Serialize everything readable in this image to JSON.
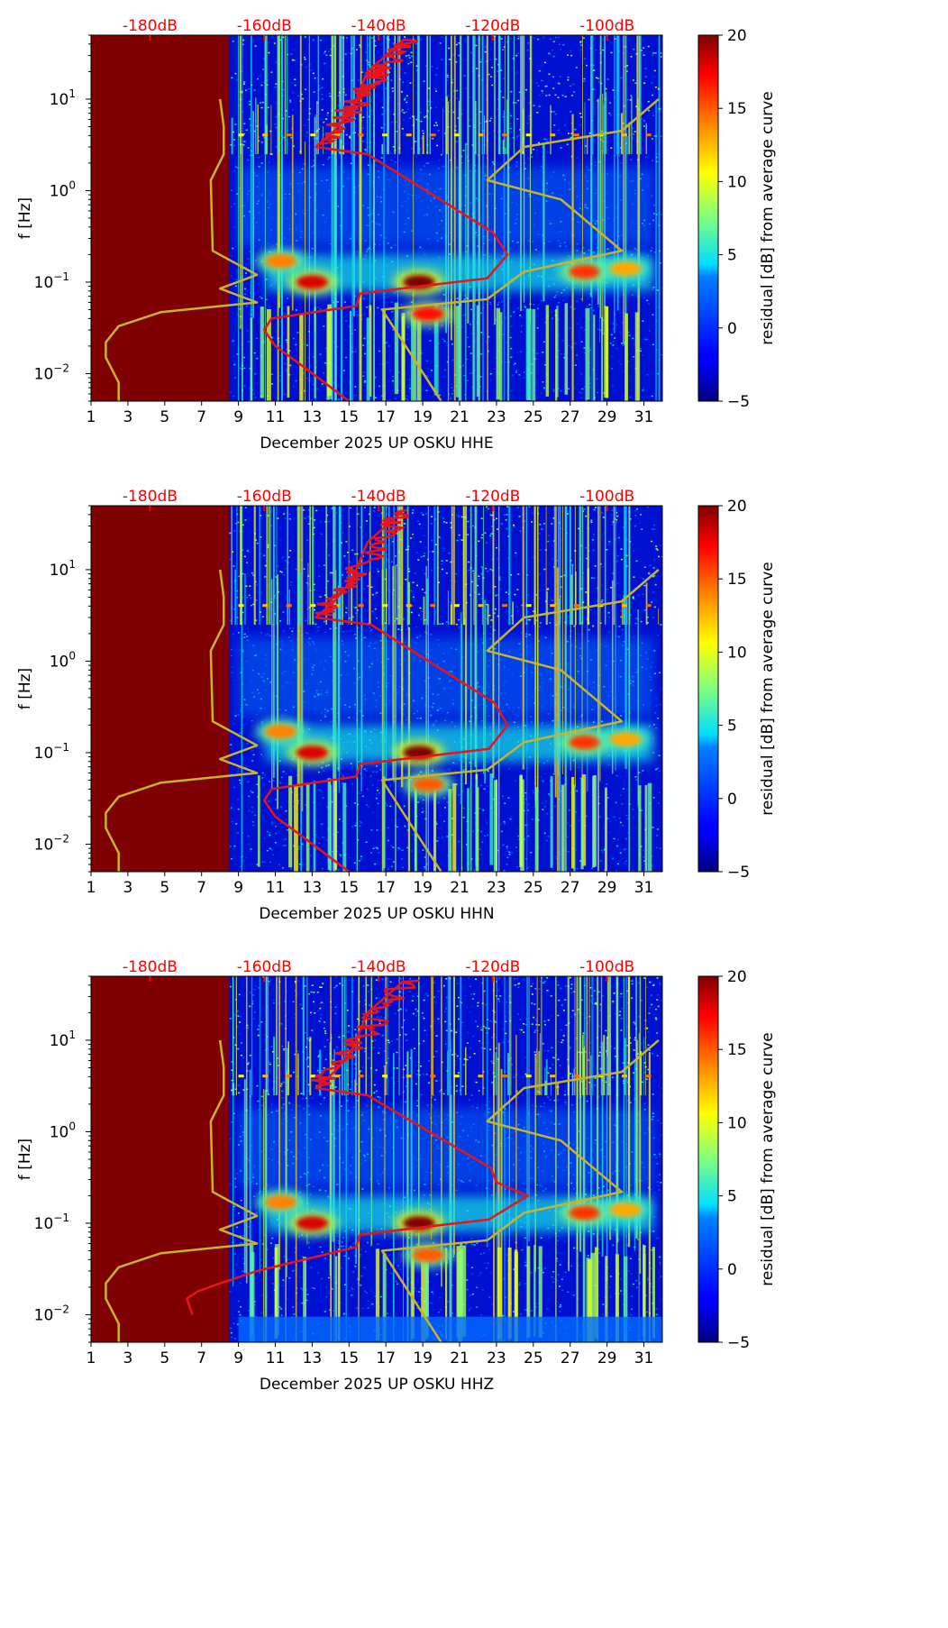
{
  "chart_data": [
    {
      "type": "heatmap",
      "xlabel": "December 2025 UP OSKU  HHE",
      "ylabel": "f [Hz]",
      "xlim": [
        1,
        32
      ],
      "ylim_hz": [
        0.005,
        50
      ],
      "x_ticks": [
        "1",
        "3",
        "5",
        "7",
        "9",
        "11",
        "13",
        "15",
        "17",
        "19",
        "21",
        "23",
        "25",
        "27",
        "29",
        "31"
      ],
      "y_ticks": [
        {
          "label": "10",
          "exp": "−2"
        },
        {
          "label": "10",
          "exp": "−1"
        },
        {
          "label": "10",
          "exp": "0"
        },
        {
          "label": "10",
          "exp": "1"
        }
      ],
      "top_ticks": [
        "-180dB",
        "-160dB",
        "-140dB",
        "-120dB",
        "-100dB"
      ],
      "colorbar": {
        "label": "residual [dB] from average curve",
        "range": [
          -5,
          20
        ],
        "ticks": [
          "−5",
          "0",
          "5",
          "10",
          "15",
          "20"
        ]
      },
      "no_data_until_day": 8.5,
      "red_curve": {
        "name": "average curve",
        "day": [
          15.0,
          12.5,
          11.0,
          10.4,
          10.8,
          15.4,
          15.6,
          22.5,
          23.6,
          22.8,
          16.0,
          13.2,
          14.2,
          15.2,
          16.0,
          18.0
        ],
        "hz": [
          0.005,
          0.012,
          0.02,
          0.03,
          0.04,
          0.055,
          0.075,
          0.11,
          0.2,
          0.35,
          2.5,
          3.0,
          4.5,
          8.0,
          20.0,
          45.0
        ]
      },
      "yellow_left": {
        "day": [
          2.5,
          2.5,
          1.8,
          1.8,
          2.5,
          4.8,
          10.0,
          8.0,
          10.0,
          7.6,
          7.5,
          8.2,
          8.2,
          8.0
        ],
        "hz": [
          0.005,
          0.008,
          0.015,
          0.022,
          0.033,
          0.047,
          0.06,
          0.085,
          0.12,
          0.22,
          1.3,
          2.5,
          5.0,
          10.0
        ]
      },
      "yellow_mid": {
        "day": [
          20.0,
          16.8,
          22.5,
          24.5,
          29.8,
          26.5,
          22.5,
          24.5,
          29.8,
          31.8
        ],
        "hz": [
          0.005,
          0.05,
          0.065,
          0.13,
          0.22,
          0.8,
          1.3,
          3.0,
          4.5,
          10.0
        ]
      },
      "blobs": [
        {
          "day": 13.0,
          "hz": 0.1,
          "level": 18
        },
        {
          "day": 18.8,
          "hz": 0.1,
          "level": 20
        },
        {
          "day": 19.3,
          "hz": 0.045,
          "level": 17
        },
        {
          "day": 11.3,
          "hz": 0.17,
          "level": 14
        },
        {
          "day": 27.8,
          "hz": 0.13,
          "level": 16
        },
        {
          "day": 30.0,
          "hz": 0.14,
          "level": 13
        }
      ]
    },
    {
      "type": "heatmap",
      "xlabel": "December 2025 UP OSKU  HHN",
      "ylabel": "f [Hz]",
      "xlim": [
        1,
        32
      ],
      "ylim_hz": [
        0.005,
        50
      ],
      "x_ticks": [
        "1",
        "3",
        "5",
        "7",
        "9",
        "11",
        "13",
        "15",
        "17",
        "19",
        "21",
        "23",
        "25",
        "27",
        "29",
        "31"
      ],
      "y_ticks": [
        {
          "label": "10",
          "exp": "−2"
        },
        {
          "label": "10",
          "exp": "−1"
        },
        {
          "label": "10",
          "exp": "0"
        },
        {
          "label": "10",
          "exp": "1"
        }
      ],
      "top_ticks": [
        "-180dB",
        "-160dB",
        "-140dB",
        "-120dB",
        "-100dB"
      ],
      "colorbar": {
        "label": "residual [dB] from average curve",
        "range": [
          -5,
          20
        ],
        "ticks": [
          "−5",
          "0",
          "5",
          "10",
          "15",
          "20"
        ]
      },
      "no_data_until_day": 8.5,
      "red_curve": {
        "name": "average curve",
        "day": [
          15.0,
          12.5,
          11.0,
          10.4,
          10.8,
          15.4,
          15.6,
          22.6,
          23.6,
          22.9,
          16.2,
          13.2,
          14.2,
          15.2,
          16.0,
          18.0
        ],
        "hz": [
          0.005,
          0.012,
          0.02,
          0.03,
          0.04,
          0.055,
          0.075,
          0.11,
          0.2,
          0.35,
          2.5,
          3.0,
          4.5,
          8.0,
          20.0,
          45.0
        ]
      },
      "yellow_left": {
        "day": [
          2.5,
          2.5,
          1.8,
          1.8,
          2.5,
          4.8,
          10.0,
          8.0,
          10.0,
          7.6,
          7.5,
          8.2,
          8.2,
          8.0
        ],
        "hz": [
          0.005,
          0.008,
          0.015,
          0.022,
          0.033,
          0.047,
          0.06,
          0.085,
          0.12,
          0.22,
          1.3,
          2.5,
          5.0,
          10.0
        ]
      },
      "yellow_mid": {
        "day": [
          20.0,
          16.8,
          22.5,
          24.5,
          29.8,
          26.5,
          22.5,
          24.5,
          29.8,
          31.8
        ],
        "hz": [
          0.005,
          0.05,
          0.065,
          0.13,
          0.22,
          0.8,
          1.3,
          3.0,
          4.5,
          10.0
        ]
      },
      "blobs": [
        {
          "day": 13.0,
          "hz": 0.1,
          "level": 18
        },
        {
          "day": 18.8,
          "hz": 0.1,
          "level": 20
        },
        {
          "day": 19.3,
          "hz": 0.045,
          "level": 15
        },
        {
          "day": 11.3,
          "hz": 0.17,
          "level": 14
        },
        {
          "day": 27.8,
          "hz": 0.13,
          "level": 16
        },
        {
          "day": 30.0,
          "hz": 0.14,
          "level": 13
        }
      ]
    },
    {
      "type": "heatmap",
      "xlabel": "December 2025 UP OSKU  HHZ",
      "ylabel": "f [Hz]",
      "xlim": [
        1,
        32
      ],
      "ylim_hz": [
        0.005,
        50
      ],
      "x_ticks": [
        "1",
        "3",
        "5",
        "7",
        "9",
        "11",
        "13",
        "15",
        "17",
        "19",
        "21",
        "23",
        "25",
        "27",
        "29",
        "31"
      ],
      "y_ticks": [
        {
          "label": "10",
          "exp": "−2"
        },
        {
          "label": "10",
          "exp": "−1"
        },
        {
          "label": "10",
          "exp": "0"
        },
        {
          "label": "10",
          "exp": "1"
        }
      ],
      "top_ticks": [
        "-180dB",
        "-160dB",
        "-140dB",
        "-120dB",
        "-100dB"
      ],
      "colorbar": {
        "label": "residual [dB] from average curve",
        "range": [
          -5,
          20
        ],
        "ticks": [
          "−5",
          "0",
          "5",
          "10",
          "15",
          "20"
        ]
      },
      "no_data_until_day": 8.5,
      "red_curve": {
        "name": "average curve",
        "day": [
          6.5,
          6.2,
          6.8,
          8.0,
          10.0,
          15.4,
          15.6,
          22.6,
          24.7,
          23.0,
          22.7,
          16.0,
          13.2,
          14.2,
          15.2,
          16.0,
          18.0
        ],
        "hz": [
          0.01,
          0.015,
          0.018,
          0.022,
          0.03,
          0.055,
          0.075,
          0.11,
          0.2,
          0.28,
          0.4,
          2.5,
          3.0,
          4.5,
          8.0,
          20.0,
          45.0
        ]
      },
      "yellow_left": {
        "day": [
          2.5,
          2.5,
          1.8,
          1.8,
          2.5,
          4.8,
          10.0,
          8.0,
          10.0,
          7.6,
          7.5,
          8.2,
          8.2,
          8.0
        ],
        "hz": [
          0.005,
          0.008,
          0.015,
          0.022,
          0.033,
          0.047,
          0.06,
          0.085,
          0.12,
          0.22,
          1.3,
          2.5,
          5.0,
          10.0
        ]
      },
      "yellow_mid": {
        "day": [
          20.0,
          16.8,
          22.5,
          24.5,
          29.8,
          26.5,
          22.5,
          24.5,
          29.8,
          31.8
        ],
        "hz": [
          0.005,
          0.05,
          0.065,
          0.13,
          0.22,
          0.8,
          1.3,
          3.0,
          4.5,
          10.0
        ]
      },
      "blobs": [
        {
          "day": 13.0,
          "hz": 0.1,
          "level": 18
        },
        {
          "day": 18.8,
          "hz": 0.1,
          "level": 20
        },
        {
          "day": 19.3,
          "hz": 0.045,
          "level": 15
        },
        {
          "day": 11.3,
          "hz": 0.17,
          "level": 14
        },
        {
          "day": 27.8,
          "hz": 0.13,
          "level": 16
        },
        {
          "day": 30.0,
          "hz": 0.14,
          "level": 13
        }
      ]
    }
  ],
  "colors": {
    "red": "#e8141b",
    "yellow": "#c8b42a",
    "nodata": "#7f0000",
    "top_tick_text": "#ff0000"
  }
}
